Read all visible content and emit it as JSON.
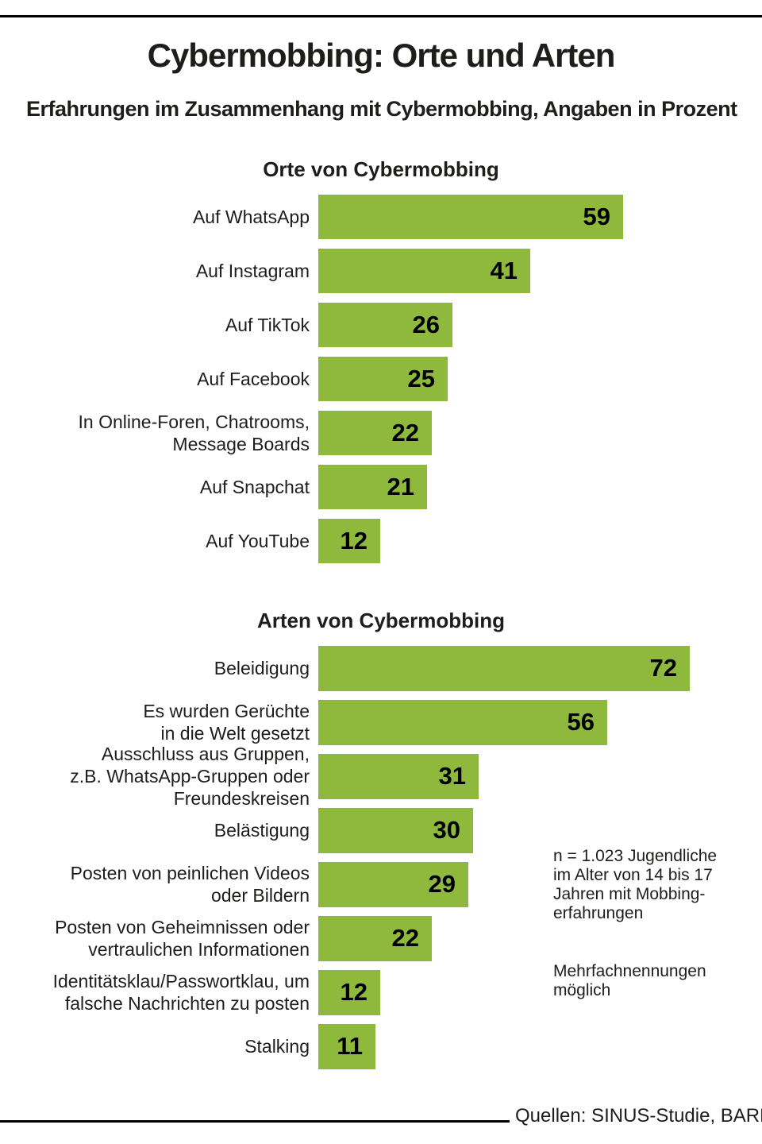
{
  "page": {
    "title": "Cybermobbing: Orte und Arten",
    "subtitle": "Erfahrungen im Zusammenhang mit Cybermobbing, Angaben in Prozent",
    "source_label": "Quellen: SINUS-Studie, BARMER"
  },
  "annotation": {
    "sample_note": "n = 1.023 Jugendliche\nim Alter von 14 bis 17\nJahren mit Mobbing-\nerfahrungen",
    "multiple_mentions_note": "Mehrfachnennungen\nmöglich"
  },
  "colors": {
    "bar": "#8eb93d",
    "text": "#1d1d1b",
    "rule": "#000000"
  },
  "chart_data": [
    {
      "type": "bar",
      "orientation": "horizontal",
      "title": "Orte von Cybermobbing",
      "unit": "Prozent",
      "xlim": [
        0,
        80
      ],
      "grid": false,
      "legend": false,
      "categories": [
        "Auf WhatsApp",
        "Auf Instagram",
        "Auf TikTok",
        "Auf Facebook",
        "In Online-Foren, Chatrooms, Message Boards",
        "Auf Snapchat",
        "Auf YouTube"
      ],
      "category_lines": [
        [
          "Auf WhatsApp"
        ],
        [
          "Auf Instagram"
        ],
        [
          "Auf TikTok"
        ],
        [
          "Auf Facebook"
        ],
        [
          "In Online-Foren, Chatrooms,",
          "Message Boards"
        ],
        [
          "Auf Snapchat"
        ],
        [
          "Auf YouTube"
        ]
      ],
      "values": [
        59,
        41,
        26,
        25,
        22,
        21,
        12
      ]
    },
    {
      "type": "bar",
      "orientation": "horizontal",
      "title": "Arten von Cybermobbing",
      "unit": "Prozent",
      "xlim": [
        0,
        80
      ],
      "grid": false,
      "legend": false,
      "categories": [
        "Beleidigung",
        "Es wurden Gerüchte in die Welt gesetzt",
        "Ausschluss aus Gruppen, z.B. WhatsApp-Gruppen oder Freundeskreisen",
        "Belästigung",
        "Posten von peinlichen Videos oder Bildern",
        "Posten von Geheimnissen oder vertraulichen Informationen",
        "Identitätsklau/Passwortklau, um falsche Nachrichten zu posten",
        "Stalking"
      ],
      "category_lines": [
        [
          "Beleidigung"
        ],
        [
          "Es wurden Gerüchte",
          "in die Welt gesetzt"
        ],
        [
          "Ausschluss aus Gruppen,",
          "z.B. WhatsApp-Gruppen oder",
          "Freundeskreisen"
        ],
        [
          "Belästigung"
        ],
        [
          "Posten von peinlichen Videos",
          "oder Bildern"
        ],
        [
          "Posten von Geheimnissen oder",
          "vertraulichen Informationen"
        ],
        [
          "Identitätsklau/Passwortklau, um",
          "falsche Nachrichten zu posten"
        ],
        [
          "Stalking"
        ]
      ],
      "values": [
        72,
        56,
        31,
        30,
        29,
        22,
        12,
        11
      ]
    }
  ]
}
